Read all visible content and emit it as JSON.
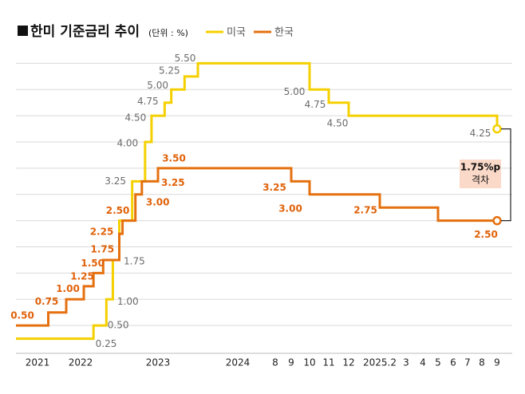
{
  "chart_data": {
    "type": "step",
    "title": "한미 기준금리 추이",
    "unit": "(단위 : %)",
    "xlim": [
      -6,
      57
    ],
    "ylim": [
      0,
      5.75
    ],
    "xticks": [
      {
        "value": 0,
        "label": "2021"
      },
      {
        "value": 12,
        "label": "2022"
      },
      {
        "value": 24,
        "label": "2023"
      },
      {
        "value": 36,
        "label": "2024"
      },
      {
        "value": 43,
        "label": "8"
      },
      {
        "value": 44,
        "label": "9"
      },
      {
        "value": 45,
        "label": "10"
      },
      {
        "value": 46,
        "label": "11"
      },
      {
        "value": 47,
        "label": "12"
      },
      {
        "value": 49,
        "label": "2025.2"
      },
      {
        "value": 50,
        "label": "3"
      },
      {
        "value": 51,
        "label": "4"
      },
      {
        "value": 52,
        "label": "5"
      },
      {
        "value": 53,
        "label": "6"
      },
      {
        "value": 54,
        "label": "7"
      },
      {
        "value": 55,
        "label": "8"
      },
      {
        "value": 56,
        "label": "9"
      }
    ],
    "yticks": [
      0.5,
      1,
      1.5,
      2,
      2.5,
      3,
      3.5,
      4,
      4.5,
      5,
      5.5
    ],
    "grid": true,
    "series": [
      {
        "name": "미국",
        "color": "#f5d000",
        "label_color": "#6b6b6b",
        "x": [
          -6,
          14,
          16,
          17,
          18,
          20,
          22,
          23,
          25,
          26,
          28,
          30,
          45,
          46,
          47,
          56
        ],
        "values": [
          0.25,
          0.5,
          1,
          1.75,
          2.5,
          3.25,
          4,
          4.5,
          4.75,
          5,
          5.25,
          5.5,
          5,
          4.75,
          4.5,
          4.25
        ],
        "value_labels": [
          "0.25",
          "0.50",
          "1.00",
          "1.75",
          null,
          "3.25",
          "4.00",
          "4.50",
          "4.75",
          "5.00",
          "5.25",
          "5.50",
          "5.00",
          "4.75",
          "4.50",
          "4.25"
        ]
      },
      {
        "name": "한국",
        "color": "#e5700f",
        "label_color": "#e0620a",
        "x": [
          -6,
          3,
          8,
          12.5,
          14,
          15.5,
          18,
          18.5,
          20.5,
          21.5,
          24,
          44,
          45,
          49,
          52,
          56
        ],
        "values": [
          0.5,
          0.75,
          1,
          1.25,
          1.5,
          1.75,
          2.25,
          2.5,
          3,
          3.25,
          3.5,
          3.25,
          3,
          2.75,
          2.5,
          2.5
        ],
        "value_labels": [
          "0.50",
          "0.75",
          "1.00",
          "1.25",
          "1.50",
          "1.75",
          "2.25",
          "2.50",
          "3.00",
          "3.25",
          "3.50",
          "3.25",
          "3.00",
          "2.75",
          null,
          "2.50"
        ]
      }
    ],
    "gap_label": "1.75%p",
    "gap_sublabel": "격차"
  }
}
